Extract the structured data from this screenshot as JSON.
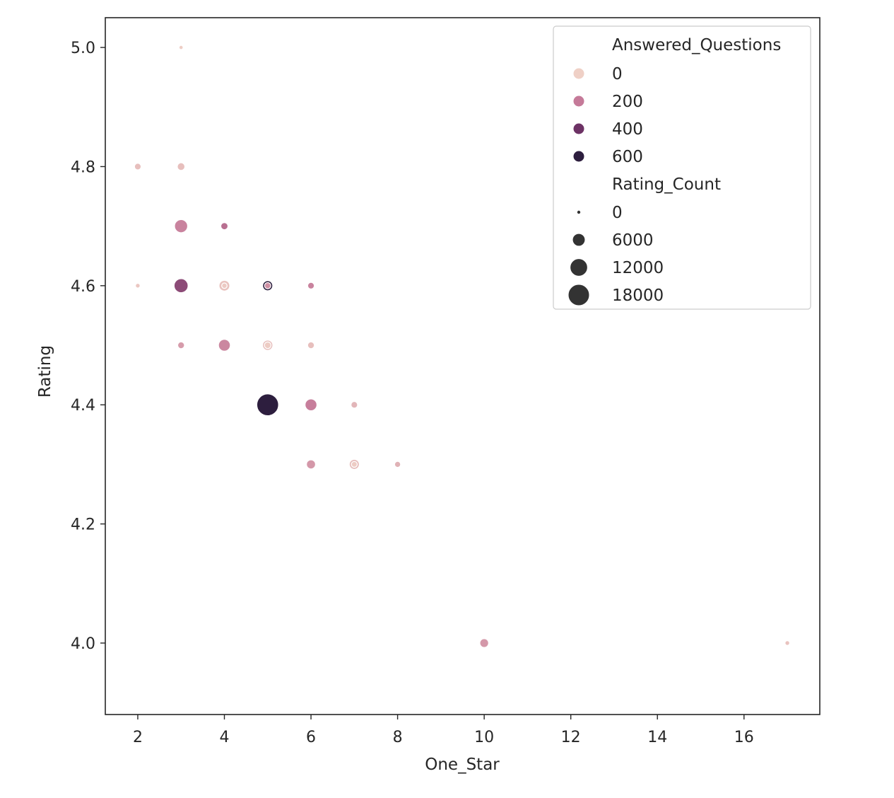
{
  "chart_data": {
    "type": "scatter",
    "title": "",
    "xlabel": "One_Star",
    "ylabel": "Rating",
    "xlim": [
      1.25,
      17.75
    ],
    "ylim": [
      3.88,
      5.05
    ],
    "xticks": [
      2,
      4,
      6,
      8,
      10,
      12,
      14,
      16
    ],
    "yticks": [
      4.0,
      4.2,
      4.4,
      4.6,
      4.8,
      5.0
    ],
    "xtick_labels": [
      "2",
      "4",
      "6",
      "8",
      "10",
      "12",
      "14",
      "16"
    ],
    "ytick_labels": [
      "4.0",
      "4.2",
      "4.4",
      "4.6",
      "4.8",
      "5.0"
    ],
    "grid": false,
    "legend_position": "top-right",
    "hue_variable": "Answered_Questions",
    "size_variable": "Rating_Count",
    "hue_legend": [
      {
        "label": "0",
        "value": 0,
        "color": "#efd0c6"
      },
      {
        "label": "200",
        "value": 200,
        "color": "#c57a99"
      },
      {
        "label": "400",
        "value": 400,
        "color": "#6d3265"
      },
      {
        "label": "600",
        "value": 600,
        "color": "#2d1e3e"
      }
    ],
    "size_legend": [
      {
        "label": "0",
        "value": 0
      },
      {
        "label": "6000",
        "value": 6000
      },
      {
        "label": "12000",
        "value": 12000
      },
      {
        "label": "18000",
        "value": 18000
      }
    ],
    "points": [
      {
        "x": 3,
        "y": 5.0,
        "answered": 5,
        "rating_count": 100
      },
      {
        "x": 2,
        "y": 4.8,
        "answered": 40,
        "rating_count": 1200
      },
      {
        "x": 3,
        "y": 4.8,
        "answered": 40,
        "rating_count": 1800
      },
      {
        "x": 3,
        "y": 4.7,
        "answered": 180,
        "rating_count": 6500
      },
      {
        "x": 4,
        "y": 4.7,
        "answered": 230,
        "rating_count": 1500
      },
      {
        "x": 2,
        "y": 4.6,
        "answered": 20,
        "rating_count": 300
      },
      {
        "x": 3,
        "y": 4.6,
        "answered": 330,
        "rating_count": 7500
      },
      {
        "x": 4,
        "y": 4.6,
        "answered": 30,
        "rating_count": 4200
      },
      {
        "x": 4,
        "y": 4.6,
        "answered": 15,
        "rating_count": 600
      },
      {
        "x": 5,
        "y": 4.6,
        "answered": 620,
        "rating_count": 3600
      },
      {
        "x": 5,
        "y": 4.6,
        "answered": 150,
        "rating_count": 1000
      },
      {
        "x": 6,
        "y": 4.6,
        "answered": 180,
        "rating_count": 1200
      },
      {
        "x": 3,
        "y": 4.5,
        "answered": 120,
        "rating_count": 1300
      },
      {
        "x": 4,
        "y": 4.5,
        "answered": 170,
        "rating_count": 5200
      },
      {
        "x": 5,
        "y": 4.5,
        "answered": 40,
        "rating_count": 3800
      },
      {
        "x": 5,
        "y": 4.5,
        "answered": 10,
        "rating_count": 1200
      },
      {
        "x": 6,
        "y": 4.5,
        "answered": 40,
        "rating_count": 1300
      },
      {
        "x": 5,
        "y": 4.4,
        "answered": 640,
        "rating_count": 19000
      },
      {
        "x": 6,
        "y": 4.4,
        "answered": 190,
        "rating_count": 5200
      },
      {
        "x": 7,
        "y": 4.4,
        "answered": 60,
        "rating_count": 1200
      },
      {
        "x": 6,
        "y": 4.3,
        "answered": 130,
        "rating_count": 2800
      },
      {
        "x": 7,
        "y": 4.3,
        "answered": 40,
        "rating_count": 3600
      },
      {
        "x": 7,
        "y": 4.3,
        "answered": 10,
        "rating_count": 800
      },
      {
        "x": 8,
        "y": 4.3,
        "answered": 70,
        "rating_count": 900
      },
      {
        "x": 10,
        "y": 4.0,
        "answered": 130,
        "rating_count": 2600
      },
      {
        "x": 17,
        "y": 4.0,
        "answered": 30,
        "rating_count": 300
      }
    ]
  }
}
